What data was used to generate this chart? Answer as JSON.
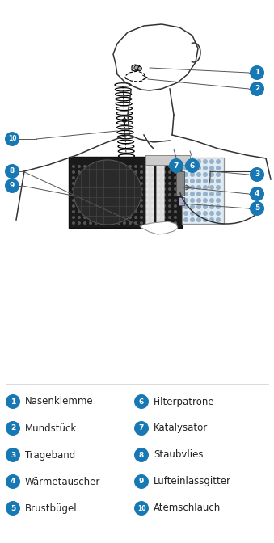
{
  "bg_color": "#ffffff",
  "circle_color": "#1878b4",
  "circle_text_color": "#ffffff",
  "text_color": "#222222",
  "line_color": "#666666",
  "legend_items_left": [
    {
      "num": "1",
      "text": "Nasenklemme"
    },
    {
      "num": "2",
      "text": "Mundstück"
    },
    {
      "num": "3",
      "text": "Trageband"
    },
    {
      "num": "4",
      "text": "Wärmetauscher"
    },
    {
      "num": "5",
      "text": "Brustbügel"
    }
  ],
  "legend_items_right": [
    {
      "num": "6",
      "text": "Filterpatrone"
    },
    {
      "num": "7",
      "text": "Katalysator"
    },
    {
      "num": "8",
      "text": "Staubvlies"
    },
    {
      "num": "9",
      "text": "Lufteinlassgitter"
    },
    {
      "num": "10",
      "text": "Atemschlauch"
    }
  ]
}
